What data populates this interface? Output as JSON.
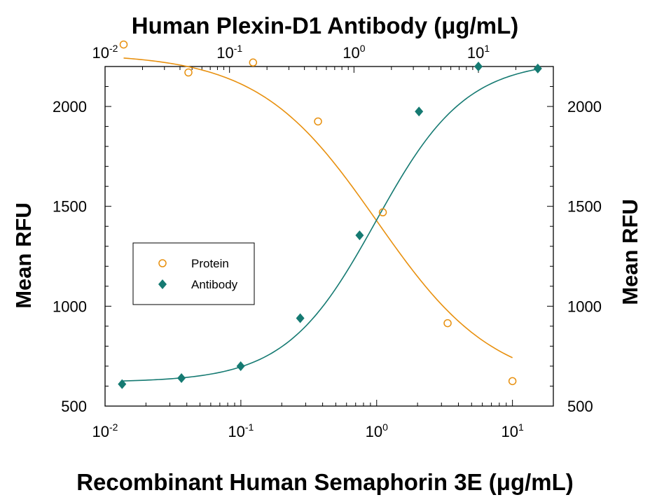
{
  "chart_data": {
    "type": "scatter",
    "top_axis_title": "Human Plexin-D1 Antibody (μg/mL)",
    "bottom_axis_title": "Recombinant Human Semaphorin 3E (μg/mL)",
    "y_left_label": "Mean RFU",
    "y_right_label": "Mean RFU",
    "x_scale": "log",
    "bottom_xlim": [
      0.01,
      20
    ],
    "top_xlim": [
      0.01,
      40
    ],
    "ylim": [
      500,
      2200
    ],
    "bottom_ticks": [
      {
        "value": 0.01,
        "base": "10",
        "exp": "-2"
      },
      {
        "value": 0.1,
        "base": "10",
        "exp": "-1"
      },
      {
        "value": 1,
        "base": "10",
        "exp": "0"
      },
      {
        "value": 10,
        "base": "10",
        "exp": "1"
      }
    ],
    "top_ticks": [
      {
        "value": 0.01,
        "base": "10",
        "exp": "-2"
      },
      {
        "value": 0.1,
        "base": "10",
        "exp": "-1"
      },
      {
        "value": 1,
        "base": "10",
        "exp": "0"
      },
      {
        "value": 10,
        "base": "10",
        "exp": "1"
      }
    ],
    "y_ticks": [
      "500",
      "1000",
      "1500",
      "2000"
    ],
    "legend": {
      "position": "left-middle"
    },
    "series": [
      {
        "name": "Protein",
        "axis": "bottom",
        "marker": "open-circle",
        "color": "#e8900e",
        "x": [
          0.0137,
          0.0411,
          0.123,
          0.37,
          1.11,
          3.33,
          10
        ],
        "y": [
          2310,
          2170,
          2220,
          1925,
          1470,
          915,
          625
        ],
        "fit": {
          "bottom": 590,
          "top": 2265,
          "ec50": 1.0,
          "hill": -1.0
        }
      },
      {
        "name": "Antibody",
        "axis": "top",
        "marker": "filled-diamond",
        "color": "#157a72",
        "x": [
          0.0137,
          0.0411,
          0.123,
          0.37,
          1.11,
          3.33,
          10,
          30
        ],
        "y": [
          610,
          640,
          700,
          940,
          1355,
          1975,
          2200,
          2190
        ],
        "fit": {
          "bottom": 620,
          "top": 2230,
          "ec50": 1.5,
          "hill": 1.2
        }
      }
    ]
  }
}
